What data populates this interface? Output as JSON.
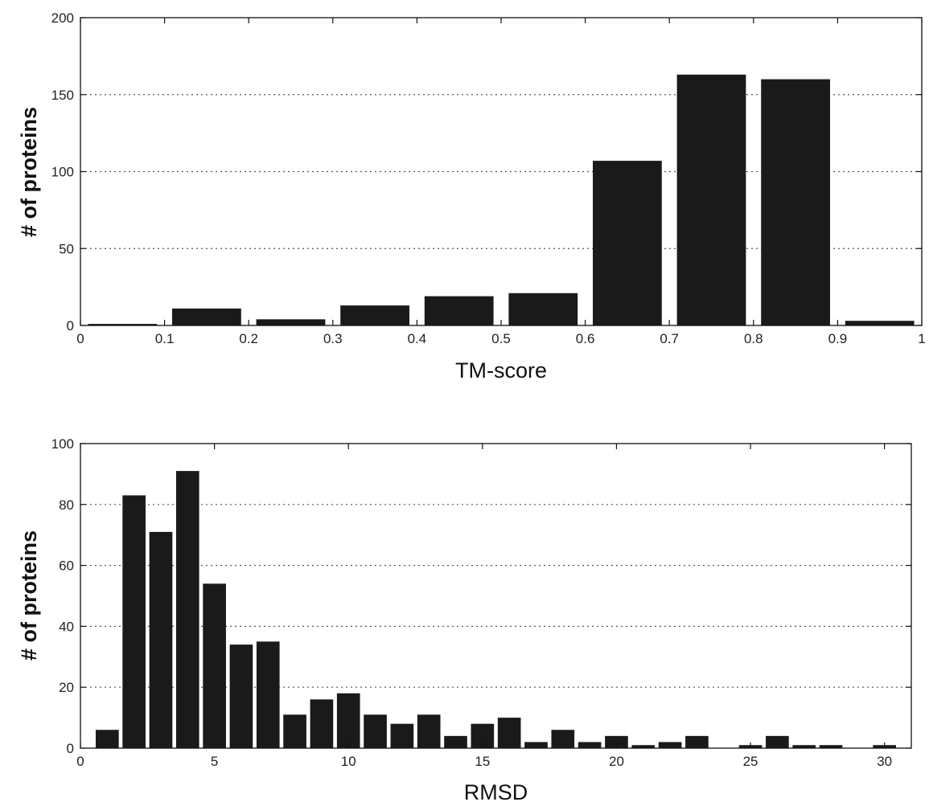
{
  "chart_data": [
    {
      "type": "bar",
      "title": "",
      "xlabel": "TM-score",
      "ylabel": "# of proteins",
      "xlim": [
        0,
        1
      ],
      "ylim": [
        0,
        200
      ],
      "xticks": [
        0,
        0.1,
        0.2,
        0.3,
        0.4,
        0.5,
        0.6,
        0.7,
        0.8,
        0.9,
        1
      ],
      "xtick_labels": [
        "0",
        "0.1",
        "0.2",
        "0.3",
        "0.4",
        "0.5",
        "0.6",
        "0.7",
        "0.8",
        "0.9",
        "1"
      ],
      "yticks": [
        0,
        50,
        100,
        150,
        200
      ],
      "ytick_labels": [
        "0",
        "50",
        "100",
        "150",
        "200"
      ],
      "grid": "horizontal dotted",
      "bar_color": "#1a1a1a",
      "x": [
        0.05,
        0.15,
        0.25,
        0.35,
        0.45,
        0.55,
        0.65,
        0.75,
        0.85,
        0.95
      ],
      "values": [
        1,
        11,
        4,
        13,
        19,
        21,
        107,
        163,
        160,
        3
      ]
    },
    {
      "type": "bar",
      "title": "",
      "xlabel": "RMSD",
      "ylabel": "# of proteins",
      "xlim": [
        0,
        31
      ],
      "ylim": [
        0,
        100
      ],
      "xticks": [
        0,
        5,
        10,
        15,
        20,
        25,
        30
      ],
      "xtick_labels": [
        "0",
        "5",
        "10",
        "15",
        "20",
        "25",
        "30"
      ],
      "yticks": [
        0,
        20,
        40,
        60,
        80,
        100
      ],
      "ytick_labels": [
        "0",
        "20",
        "40",
        "60",
        "80",
        "100"
      ],
      "grid": "horizontal dotted",
      "bar_color": "#1a1a1a",
      "x": [
        1,
        2,
        3,
        4,
        5,
        6,
        7,
        8,
        9,
        10,
        11,
        12,
        13,
        14,
        15,
        16,
        17,
        18,
        19,
        20,
        21,
        22,
        23,
        24,
        25,
        26,
        27,
        28,
        29,
        30
      ],
      "values": [
        6,
        83,
        71,
        91,
        54,
        34,
        35,
        11,
        16,
        18,
        11,
        8,
        11,
        4,
        8,
        10,
        2,
        6,
        2,
        4,
        1,
        2,
        4,
        0,
        1,
        4,
        1,
        1,
        0,
        1
      ]
    }
  ]
}
